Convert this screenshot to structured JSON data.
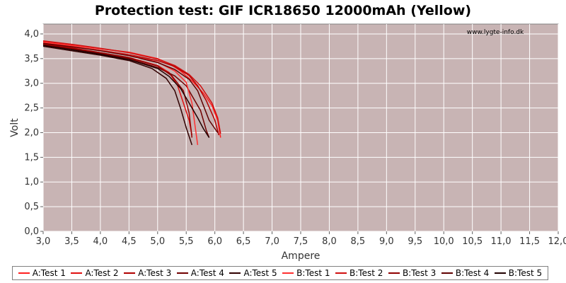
{
  "chart_data": {
    "type": "line",
    "title": "Protection test: GIF ICR18650 12000mAh (Yellow)",
    "xlabel": "Ampere",
    "ylabel": "Volt",
    "watermark": "www.lygte-info.dk",
    "xlim": [
      3.0,
      12.0
    ],
    "ylim": [
      0.0,
      4.2
    ],
    "xticks": [
      "3,0",
      "3,5",
      "4,0",
      "4,5",
      "5,0",
      "5,5",
      "6,0",
      "6,5",
      "7,0",
      "7,5",
      "8,0",
      "8,5",
      "9,0",
      "9,5",
      "10,0",
      "10,5",
      "11,0",
      "11,5",
      "12,0"
    ],
    "yticks": [
      "0,0",
      "0,5",
      "1,0",
      "1,5",
      "2,0",
      "2,5",
      "3,0",
      "3,5",
      "4,0"
    ],
    "grid": true,
    "legend_position": "bottom",
    "plot_background": "#c8b4b4",
    "series": [
      {
        "name": "A:Test 1",
        "color": "#ff2020",
        "x": [
          3.0,
          3.5,
          4.0,
          4.5,
          5.0,
          5.2,
          5.4,
          5.6,
          5.8,
          5.95,
          6.05,
          6.1
        ],
        "y": [
          3.85,
          3.78,
          3.7,
          3.63,
          3.5,
          3.4,
          3.25,
          3.05,
          2.8,
          2.55,
          2.25,
          1.9
        ]
      },
      {
        "name": "A:Test 2",
        "color": "#e01010",
        "x": [
          3.0,
          3.5,
          4.0,
          4.5,
          5.0,
          5.2,
          5.35,
          5.45,
          5.55,
          5.6
        ],
        "y": [
          3.8,
          3.72,
          3.62,
          3.52,
          3.36,
          3.22,
          2.95,
          2.6,
          2.25,
          1.95
        ]
      },
      {
        "name": "A:Test 3",
        "color": "#b00000",
        "x": [
          3.0,
          3.5,
          4.0,
          4.5,
          5.0,
          5.3,
          5.55,
          5.7,
          5.85,
          6.0,
          6.07
        ],
        "y": [
          3.82,
          3.75,
          3.67,
          3.58,
          3.46,
          3.34,
          3.16,
          2.95,
          2.65,
          2.25,
          1.95
        ]
      },
      {
        "name": "A:Test 4",
        "color": "#700000",
        "x": [
          3.0,
          3.5,
          4.0,
          4.5,
          5.0,
          5.3,
          5.5,
          5.6,
          5.75,
          5.85,
          5.9
        ],
        "y": [
          3.78,
          3.7,
          3.6,
          3.5,
          3.32,
          3.15,
          2.95,
          2.75,
          2.45,
          2.05,
          1.9
        ]
      },
      {
        "name": "A:Test 5",
        "color": "#300000",
        "x": [
          3.0,
          3.5,
          4.0,
          4.5,
          4.9,
          5.15,
          5.3,
          5.4,
          5.5,
          5.6
        ],
        "y": [
          3.75,
          3.66,
          3.57,
          3.46,
          3.3,
          3.1,
          2.85,
          2.5,
          2.1,
          1.75
        ]
      },
      {
        "name": "B:Test 1",
        "color": "#ff3030",
        "x": [
          3.0,
          3.5,
          4.0,
          4.5,
          5.0,
          5.3,
          5.5,
          5.6,
          5.7
        ],
        "y": [
          3.83,
          3.76,
          3.67,
          3.57,
          3.43,
          3.25,
          3.02,
          2.6,
          1.75
        ]
      },
      {
        "name": "B:Test 2",
        "color": "#d01010",
        "x": [
          3.0,
          3.5,
          4.0,
          4.5,
          5.0,
          5.3,
          5.55,
          5.75,
          5.95,
          6.05,
          6.1
        ],
        "y": [
          3.86,
          3.79,
          3.71,
          3.62,
          3.49,
          3.36,
          3.18,
          2.95,
          2.6,
          2.3,
          1.98
        ]
      },
      {
        "name": "B:Test 3",
        "color": "#900000",
        "x": [
          3.0,
          3.5,
          4.0,
          4.5,
          5.0,
          5.25,
          5.45,
          5.55,
          5.6
        ],
        "y": [
          3.79,
          3.71,
          3.62,
          3.52,
          3.35,
          3.15,
          2.85,
          2.4,
          1.9
        ]
      },
      {
        "name": "B:Test 4",
        "color": "#600000",
        "x": [
          3.0,
          3.5,
          4.0,
          4.5,
          5.0,
          5.3,
          5.55,
          5.7,
          5.8,
          5.9,
          6.05
        ],
        "y": [
          3.81,
          3.74,
          3.66,
          3.56,
          3.42,
          3.28,
          3.08,
          2.85,
          2.55,
          2.25,
          2.0
        ]
      },
      {
        "name": "B:Test 5",
        "color": "#200000",
        "x": [
          3.0,
          3.5,
          4.0,
          4.5,
          5.0,
          5.2,
          5.4,
          5.55,
          5.7,
          5.8,
          5.9
        ],
        "y": [
          3.77,
          3.68,
          3.59,
          3.48,
          3.3,
          3.14,
          2.9,
          2.6,
          2.3,
          2.08,
          1.9
        ]
      }
    ]
  }
}
